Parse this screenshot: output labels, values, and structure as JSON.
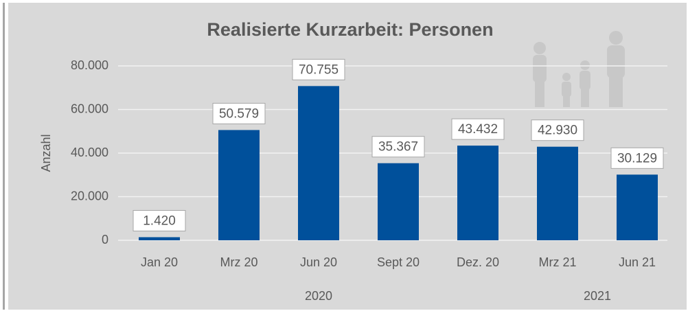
{
  "chart_data": {
    "type": "bar",
    "title": "Realisierte Kurzarbeit: Personen",
    "y_label": "Anzahl",
    "categories": [
      "Jan 20",
      "Mrz 20",
      "Jun 20",
      "Sept 20",
      "Dez. 20",
      "Mrz 21",
      "Jun 21"
    ],
    "values": [
      1420,
      50579,
      70755,
      35367,
      43432,
      42930,
      30129
    ],
    "value_labels": [
      "1.420",
      "50.579",
      "70.755",
      "35.367",
      "43.432",
      "42.930",
      "30.129"
    ],
    "groups": [
      {
        "name": "2020",
        "from": "Jan 20",
        "to": "Dez. 20"
      },
      {
        "name": "2021",
        "from": "Mrz 21",
        "to": "Jun 21"
      }
    ],
    "color": "#00509b",
    "ylim": [
      0,
      80000
    ],
    "yticks": [
      0,
      {
        "value": 20000,
        "label": "20.000"
      },
      {
        "value": 40000,
        "label": "40.000"
      },
      {
        "value": 60000,
        "label": "60.000"
      },
      {
        "value": 80000,
        "label": "80.000"
      }
    ],
    "grid": true
  }
}
